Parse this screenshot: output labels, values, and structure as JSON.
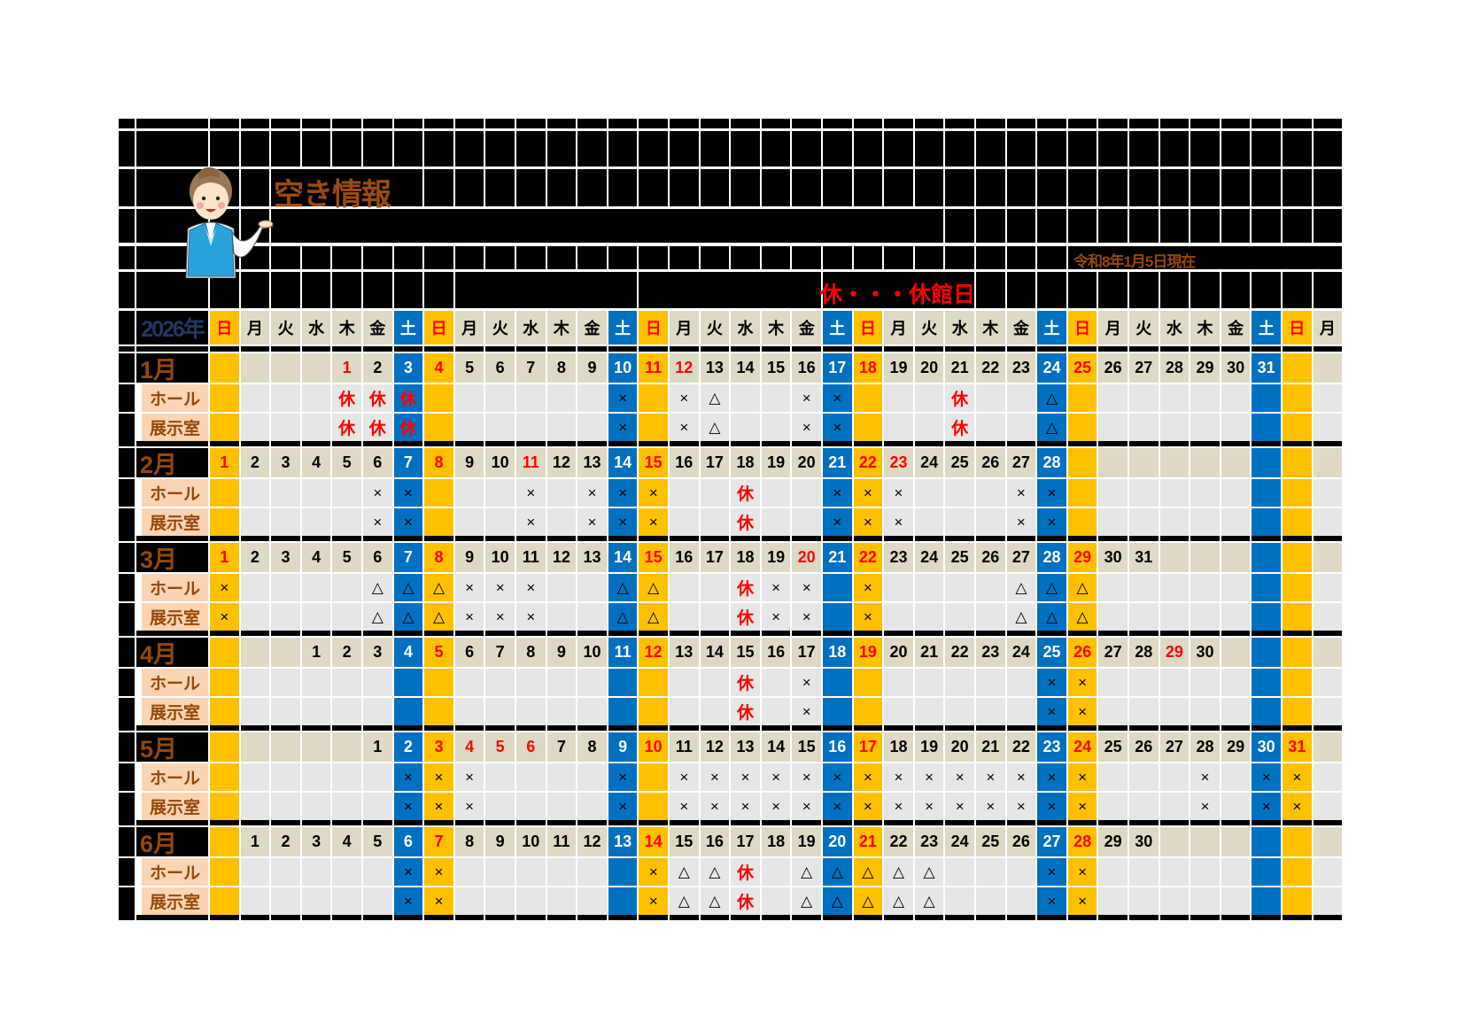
{
  "title": "空き情報",
  "as_of": "令和8年1月5日現在",
  "legend": "休・・・休館日",
  "year_label": "2026年",
  "weekdays": [
    "日",
    "月",
    "火",
    "水",
    "木",
    "金",
    "土",
    "日",
    "月",
    "火",
    "水",
    "木",
    "金",
    "土",
    "日",
    "月",
    "火",
    "水",
    "木",
    "金",
    "土",
    "日",
    "月",
    "火",
    "水",
    "木",
    "金",
    "土",
    "日",
    "月",
    "火",
    "水",
    "木",
    "金",
    "土",
    "日",
    "月"
  ],
  "row_labels": {
    "hall": "ホール",
    "exhibit": "展示室"
  },
  "colors": {
    "saturday": "#0070c0",
    "sunday": "#ffc000",
    "date_row": "#ddd9c4",
    "cell": "#e7e6e6",
    "label_bg": "#fbd4b4",
    "label_text": "#974706",
    "holiday_text": "#ff0000",
    "year_text": "#1f3864"
  },
  "months": [
    {
      "label": "1月",
      "first_weekday": "木",
      "days": 31,
      "holidays": [
        1,
        12
      ],
      "hall": {
        "1": "休",
        "2": "休",
        "3": "休",
        "10": "×",
        "12": "×",
        "13": "△",
        "16": "×",
        "17": "×",
        "21": "休",
        "24": "△"
      },
      "exhibit": {
        "1": "休",
        "2": "休",
        "3": "休",
        "10": "×",
        "12": "×",
        "13": "△",
        "16": "×",
        "17": "×",
        "21": "休",
        "24": "△"
      }
    },
    {
      "label": "2月",
      "first_weekday": "日",
      "days": 28,
      "holidays": [
        11,
        23
      ],
      "hall": {
        "6": "×",
        "7": "×",
        "11": "×",
        "13": "×",
        "14": "×",
        "15": "×",
        "18": "休",
        "21": "×",
        "22": "×",
        "23": "×",
        "27": "×",
        "28": "×"
      },
      "exhibit": {
        "6": "×",
        "7": "×",
        "11": "×",
        "13": "×",
        "14": "×",
        "15": "×",
        "18": "休",
        "21": "×",
        "22": "×",
        "23": "×",
        "27": "×",
        "28": "×"
      }
    },
    {
      "label": "3月",
      "first_weekday": "日",
      "days": 31,
      "holidays": [
        20
      ],
      "hall": {
        "1": "×",
        "6": "△",
        "7": "△",
        "8": "△",
        "9": "×",
        "10": "×",
        "11": "×",
        "14": "△",
        "15": "△",
        "18": "休",
        "19": "×",
        "20": "×",
        "22": "×",
        "27": "△",
        "28": "△",
        "29": "△"
      },
      "exhibit": {
        "1": "×",
        "6": "△",
        "7": "△",
        "8": "△",
        "9": "×",
        "10": "×",
        "11": "×",
        "14": "△",
        "15": "△",
        "18": "休",
        "19": "×",
        "20": "×",
        "22": "×",
        "27": "△",
        "28": "△",
        "29": "△"
      }
    },
    {
      "label": "4月",
      "first_weekday": "水",
      "days": 30,
      "holidays": [
        29
      ],
      "hall": {
        "15": "休",
        "17": "×",
        "25": "×",
        "26": "×"
      },
      "exhibit": {
        "15": "休",
        "17": "×",
        "25": "×",
        "26": "×"
      }
    },
    {
      "label": "5月",
      "first_weekday": "金",
      "days": 31,
      "holidays": [
        4,
        5,
        6
      ],
      "hall": {
        "2": "×",
        "3": "×",
        "4": "×",
        "9": "×",
        "11": "×",
        "12": "×",
        "13": "×",
        "14": "×",
        "15": "×",
        "16": "×",
        "17": "×",
        "18": "×",
        "19": "×",
        "20": "×",
        "21": "×",
        "22": "×",
        "23": "×",
        "24": "×",
        "28": "×",
        "30": "×",
        "31": "×"
      },
      "exhibit": {
        "2": "×",
        "3": "×",
        "4": "×",
        "9": "×",
        "11": "×",
        "12": "×",
        "13": "×",
        "14": "×",
        "15": "×",
        "16": "×",
        "17": "×",
        "18": "×",
        "19": "×",
        "20": "×",
        "21": "×",
        "22": "×",
        "23": "×",
        "24": "×",
        "28": "×",
        "30": "×",
        "31": "×"
      }
    },
    {
      "label": "6月",
      "first_weekday": "月",
      "days": 30,
      "holidays": [],
      "hall": {
        "6": "×",
        "7": "×",
        "14": "×",
        "15": "△",
        "16": "△",
        "17": "休",
        "19": "△",
        "20": "△",
        "21": "△",
        "22": "△",
        "23": "△",
        "27": "×",
        "28": "×"
      },
      "exhibit": {
        "6": "×",
        "7": "×",
        "14": "×",
        "15": "△",
        "16": "△",
        "17": "休",
        "19": "△",
        "20": "△",
        "21": "△",
        "22": "△",
        "23": "△",
        "27": "×",
        "28": "×"
      }
    }
  ]
}
